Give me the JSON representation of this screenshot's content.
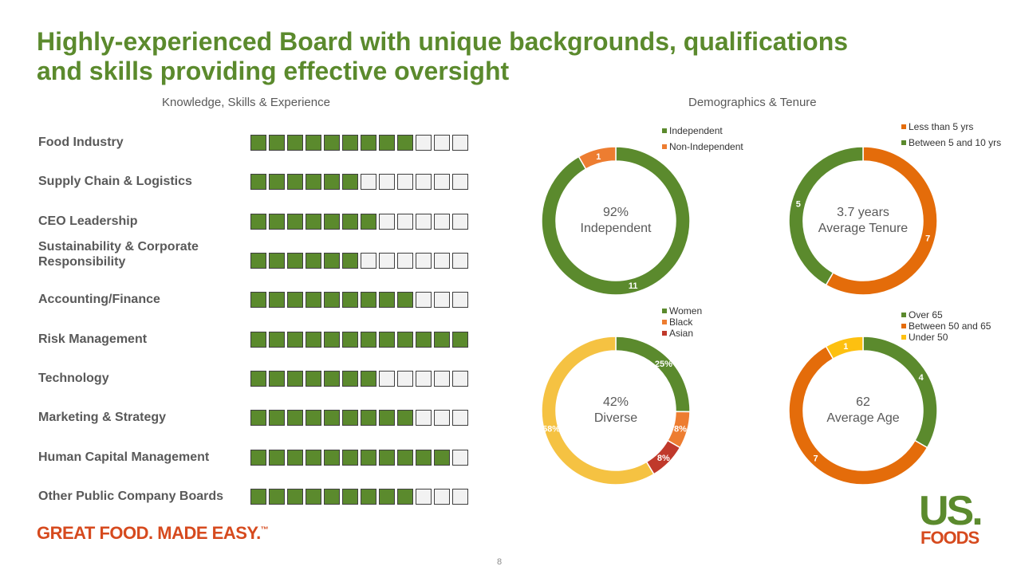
{
  "title_line1": "Highly-experienced Board with unique backgrounds, qualifications",
  "title_line2": "and skills providing effective oversight",
  "skills_heading": "Knowledge, Skills & Experience",
  "demographics_heading": "Demographics & Tenure",
  "skills_total": 12,
  "skills": [
    {
      "label": "Food Industry",
      "count": 9
    },
    {
      "label": "Supply Chain & Logistics",
      "count": 6
    },
    {
      "label": "CEO Leadership",
      "count": 7
    },
    {
      "label": "Sustainability & Corporate Responsibility",
      "count": 6
    },
    {
      "label": "Accounting/Finance",
      "count": 9
    },
    {
      "label": "Risk Management",
      "count": 12
    },
    {
      "label": "Technology",
      "count": 7
    },
    {
      "label": "Marketing & Strategy",
      "count": 9
    },
    {
      "label": "Human Capital Management",
      "count": 11
    },
    {
      "label": "Other Public Company Boards",
      "count": 9
    }
  ],
  "chart_data": [
    {
      "type": "pie",
      "subtype": "donut",
      "center_value": "92%",
      "center_label": "Independent",
      "legend_placement": "top-right",
      "slices": [
        {
          "name": "Independent",
          "value": 11,
          "label": "11",
          "color": "#5b8a2d"
        },
        {
          "name": "Non-Independent",
          "value": 1,
          "label": "1",
          "color": "#ed7d31"
        }
      ]
    },
    {
      "type": "pie",
      "subtype": "donut",
      "center_value": "3.7 years",
      "center_label": "Average Tenure",
      "legend_placement": "top-right",
      "slices": [
        {
          "name": "Less than 5 yrs",
          "value": 7,
          "label": "7",
          "color": "#e46c0a"
        },
        {
          "name": "Between 5 and 10 yrs",
          "value": 5,
          "label": "5",
          "color": "#5b8a2d"
        }
      ]
    },
    {
      "type": "pie",
      "subtype": "donut",
      "center_value": "42%",
      "center_label": "Diverse",
      "legend_placement": "top-right",
      "slices": [
        {
          "name": "Women",
          "value": 25,
          "label": "25%",
          "color": "#5b8a2d"
        },
        {
          "name": "Black",
          "value": 8,
          "label": "8%",
          "color": "#ed7d31"
        },
        {
          "name": "Asian",
          "value": 8,
          "label": "8%",
          "color": "#c0392b"
        },
        {
          "name": "",
          "value": 58,
          "label": "58%",
          "color": "#f5c242"
        }
      ]
    },
    {
      "type": "pie",
      "subtype": "donut",
      "center_value": "62",
      "center_label": "Average Age",
      "legend_placement": "top-right",
      "slices": [
        {
          "name": "Over 65",
          "value": 4,
          "label": "4",
          "color": "#5b8a2d"
        },
        {
          "name": "Between 50 and 65",
          "value": 7,
          "label": "7",
          "color": "#e46c0a"
        },
        {
          "name": "Under 50",
          "value": 1,
          "label": "1",
          "color": "#fdc010"
        }
      ]
    }
  ],
  "footer_tagline": "GREAT FOOD. MADE EASY.",
  "footer_trademark": "™",
  "page_number": "8",
  "logo_line1": "US.",
  "logo_line2": "FOODS"
}
